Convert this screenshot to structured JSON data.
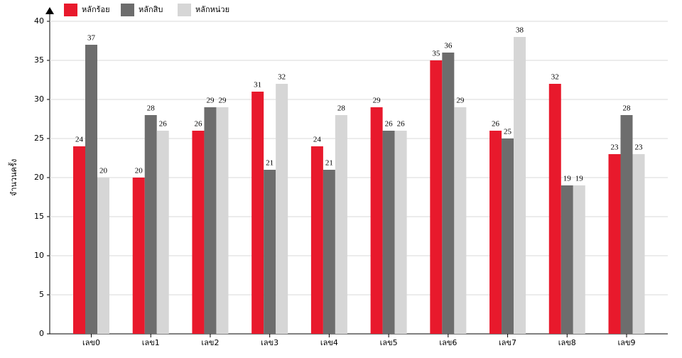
{
  "chart_data": {
    "type": "bar",
    "y_label": "จำนวนครั้ง",
    "categories": [
      "เลข0",
      "เลข1",
      "เลข2",
      "เลข3",
      "เลข4",
      "เลข5",
      "เลข6",
      "เลข7",
      "เลข8",
      "เลข9"
    ],
    "series": [
      {
        "name": "หลักร้อย",
        "color": "#e8192c",
        "values": [
          24,
          20,
          26,
          31,
          24,
          29,
          35,
          26,
          32,
          23
        ]
      },
      {
        "name": "หลักสิบ",
        "color": "#6d6d6d",
        "values": [
          37,
          28,
          29,
          21,
          21,
          26,
          36,
          25,
          19,
          28
        ]
      },
      {
        "name": "หลักหน่วย",
        "color": "#d6d6d6",
        "values": [
          20,
          26,
          29,
          32,
          28,
          26,
          29,
          38,
          19,
          23
        ]
      }
    ],
    "ylim": [
      0,
      40
    ],
    "yticks": [
      0,
      5,
      10,
      15,
      20,
      25,
      30,
      35,
      40
    ],
    "grid": true,
    "legend": "top-left"
  }
}
